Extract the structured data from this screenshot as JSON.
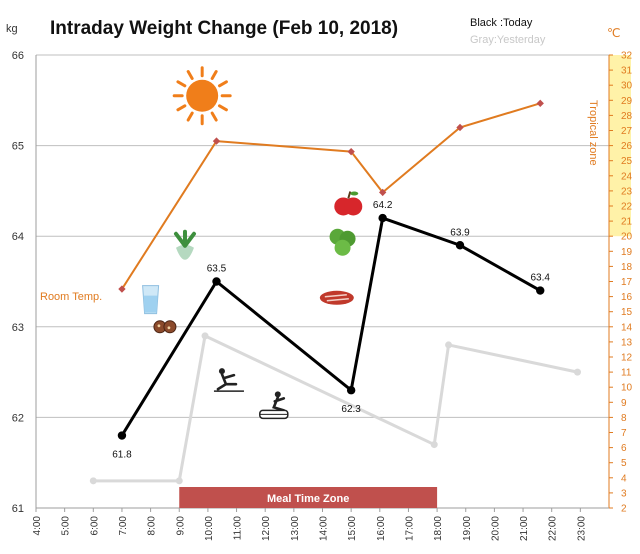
{
  "title": "Intraday Weight Change (Feb 10, 2018)",
  "legend": {
    "today": "Black :Today",
    "yesterday": "Gray:Yesterday"
  },
  "units": {
    "left": "kg",
    "right": "℃"
  },
  "labels": {
    "room_temp": "Room Temp.",
    "tropical_zone": "Tropical zone",
    "meal_zone": "Meal Time Zone"
  },
  "colors": {
    "today": "#000000",
    "yesterday": "#d9d9d9",
    "temperature": "#e07b20",
    "tropical_fill": "#fff2a8",
    "meal_zone": "#c0504d",
    "grid": "#bfbfbf"
  },
  "chart_data": {
    "type": "line",
    "title": "Intraday Weight Change (Feb 10, 2018)",
    "x_ticks": [
      "4:00",
      "5:00",
      "6:00",
      "7:00",
      "8:00",
      "9:00",
      "10:00",
      "11:00",
      "12:00",
      "13:00",
      "14:00",
      "15:00",
      "16:00",
      "17:00",
      "18:00",
      "19:00",
      "20:00",
      "21:00",
      "22:00",
      "23:00"
    ],
    "xlim": [
      4,
      24
    ],
    "ylim_left": [
      61,
      66
    ],
    "ylabel_left": "kg",
    "ylim_right": [
      2,
      32
    ],
    "ylabel_right": "℃",
    "y_ticks_left": [
      61,
      62,
      63,
      64,
      65,
      66
    ],
    "y_ticks_right": [
      2,
      3,
      4,
      5,
      6,
      7,
      8,
      9,
      10,
      11,
      12,
      13,
      14,
      15,
      16,
      17,
      18,
      19,
      20,
      21,
      22,
      23,
      24,
      25,
      26,
      27,
      28,
      29,
      30,
      31,
      32
    ],
    "tropical_zone_celsius": [
      20,
      32
    ],
    "meal_time_zone_hours": [
      9,
      18
    ],
    "series": [
      {
        "name": "Today",
        "axis": "left",
        "points": [
          {
            "x": 7.0,
            "y": 61.8,
            "label": "61.8"
          },
          {
            "x": 10.3,
            "y": 63.5,
            "label": "63.5"
          },
          {
            "x": 15.0,
            "y": 62.3,
            "label": "62.3"
          },
          {
            "x": 16.1,
            "y": 64.2,
            "label": "64.2"
          },
          {
            "x": 18.8,
            "y": 63.9,
            "label": "63.9"
          },
          {
            "x": 21.6,
            "y": 63.4,
            "label": "63.4"
          }
        ]
      },
      {
        "name": "Yesterday",
        "axis": "left",
        "points": [
          {
            "x": 6.0,
            "y": 61.3
          },
          {
            "x": 9.0,
            "y": 61.3
          },
          {
            "x": 9.9,
            "y": 62.9
          },
          {
            "x": 17.9,
            "y": 61.7
          },
          {
            "x": 18.4,
            "y": 62.8
          },
          {
            "x": 22.9,
            "y": 62.5
          }
        ]
      },
      {
        "name": "Temperature",
        "axis": "right",
        "points": [
          {
            "x": 7.0,
            "y": 16.5
          },
          {
            "x": 10.3,
            "y": 26.3
          },
          {
            "x": 15.0,
            "y": 25.6
          },
          {
            "x": 16.1,
            "y": 22.9
          },
          {
            "x": 18.8,
            "y": 27.2
          },
          {
            "x": 21.6,
            "y": 28.8
          }
        ]
      }
    ]
  },
  "icons": [
    {
      "name": "sun-icon",
      "x": 9.8,
      "y": 65.55
    },
    {
      "name": "apple-icon",
      "x": 14.9,
      "y": 64.35
    },
    {
      "name": "radish-icon",
      "x": 9.2,
      "y": 63.85
    },
    {
      "name": "lettuce-icon",
      "x": 14.7,
      "y": 63.95
    },
    {
      "name": "water-glass-icon",
      "x": 8.0,
      "y": 63.3
    },
    {
      "name": "steak-icon",
      "x": 14.5,
      "y": 63.32
    },
    {
      "name": "cookies-icon",
      "x": 8.5,
      "y": 63.0
    },
    {
      "name": "pilates-icon",
      "x": 10.7,
      "y": 62.4
    },
    {
      "name": "rowing-icon",
      "x": 12.3,
      "y": 62.1
    }
  ]
}
